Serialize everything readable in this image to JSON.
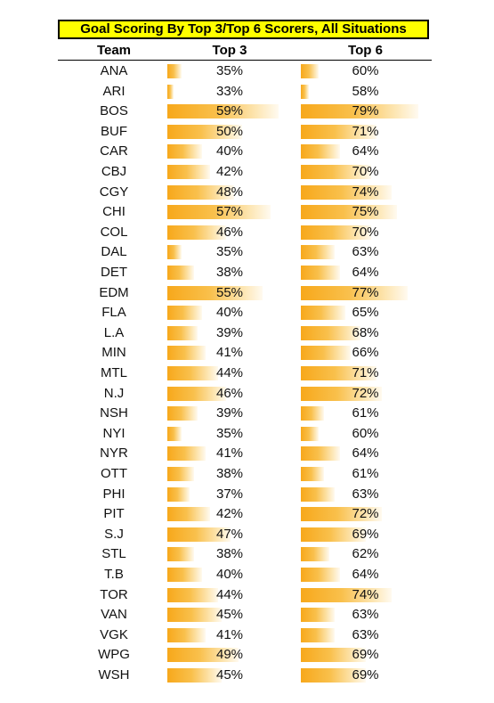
{
  "chart_data": {
    "type": "table",
    "title": "Goal Scoring By Top 3/Top 6 Scorers, All Situations",
    "columns": [
      "Team",
      "Top 3",
      "Top 6"
    ],
    "rows": [
      {
        "team": "ANA",
        "top3": 35,
        "top6": 60
      },
      {
        "team": "ARI",
        "top3": 33,
        "top6": 58
      },
      {
        "team": "BOS",
        "top3": 59,
        "top6": 79
      },
      {
        "team": "BUF",
        "top3": 50,
        "top6": 71
      },
      {
        "team": "CAR",
        "top3": 40,
        "top6": 64
      },
      {
        "team": "CBJ",
        "top3": 42,
        "top6": 70
      },
      {
        "team": "CGY",
        "top3": 48,
        "top6": 74
      },
      {
        "team": "CHI",
        "top3": 57,
        "top6": 75
      },
      {
        "team": "COL",
        "top3": 46,
        "top6": 70
      },
      {
        "team": "DAL",
        "top3": 35,
        "top6": 63
      },
      {
        "team": "DET",
        "top3": 38,
        "top6": 64
      },
      {
        "team": "EDM",
        "top3": 55,
        "top6": 77
      },
      {
        "team": "FLA",
        "top3": 40,
        "top6": 65
      },
      {
        "team": "L.A",
        "top3": 39,
        "top6": 68
      },
      {
        "team": "MIN",
        "top3": 41,
        "top6": 66
      },
      {
        "team": "MTL",
        "top3": 44,
        "top6": 71
      },
      {
        "team": "N.J",
        "top3": 46,
        "top6": 72
      },
      {
        "team": "NSH",
        "top3": 39,
        "top6": 61
      },
      {
        "team": "NYI",
        "top3": 35,
        "top6": 60
      },
      {
        "team": "NYR",
        "top3": 41,
        "top6": 64
      },
      {
        "team": "OTT",
        "top3": 38,
        "top6": 61
      },
      {
        "team": "PHI",
        "top3": 37,
        "top6": 63
      },
      {
        "team": "PIT",
        "top3": 42,
        "top6": 72
      },
      {
        "team": "S.J",
        "top3": 47,
        "top6": 69
      },
      {
        "team": "STL",
        "top3": 38,
        "top6": 62
      },
      {
        "team": "T.B",
        "top3": 40,
        "top6": 64
      },
      {
        "team": "TOR",
        "top3": 44,
        "top6": 74
      },
      {
        "team": "VAN",
        "top3": 45,
        "top6": 63
      },
      {
        "team": "VGK",
        "top3": 41,
        "top6": 63
      },
      {
        "team": "WPG",
        "top3": 49,
        "top6": 69
      },
      {
        "team": "WSH",
        "top3": 45,
        "top6": 69
      }
    ],
    "value_suffix": "%",
    "bar_color": "#f7a81b",
    "title_background": "#ffff00"
  }
}
